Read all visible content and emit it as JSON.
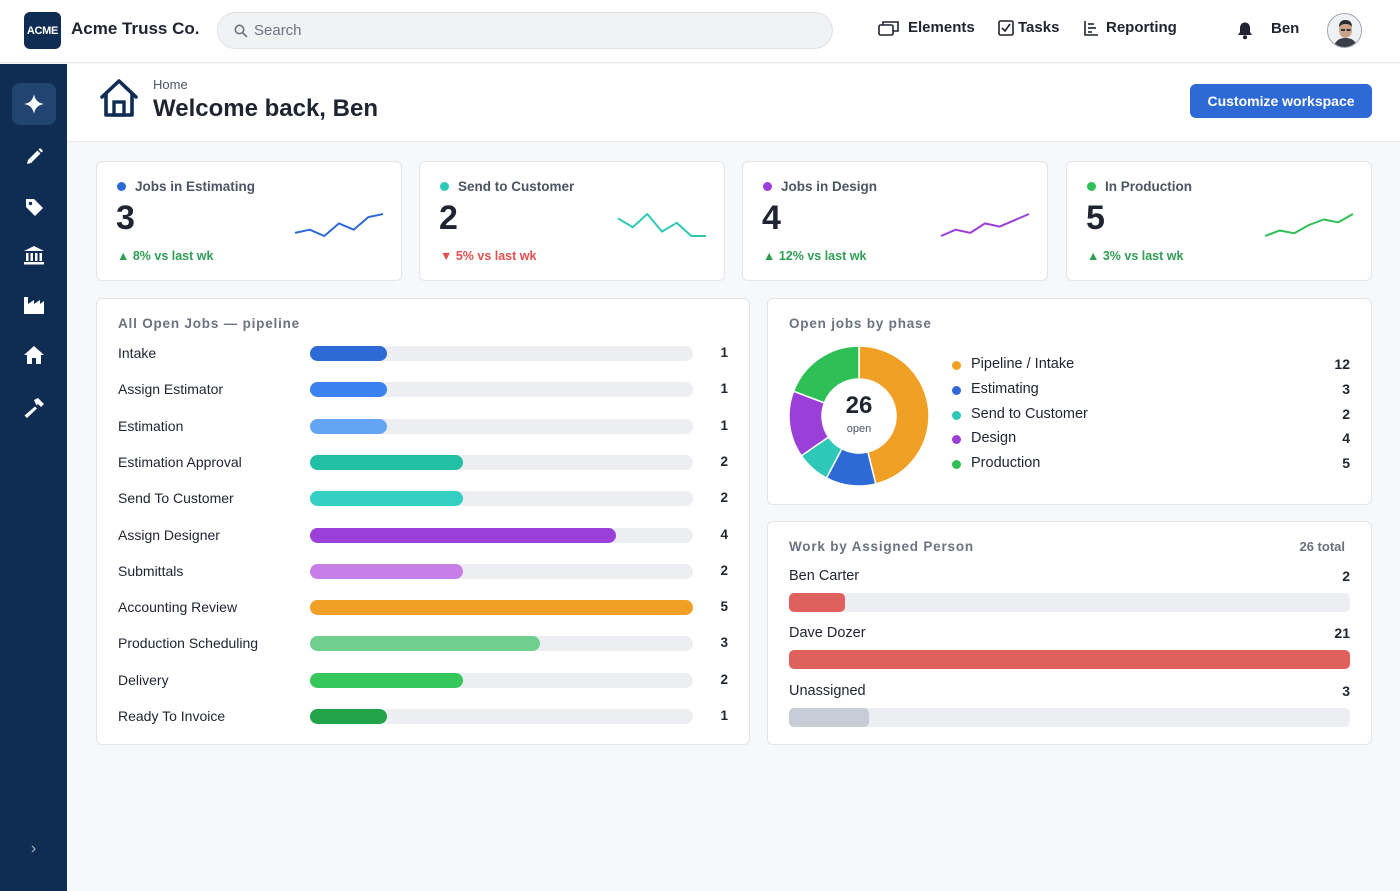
{
  "app": {
    "logo_text": "ACME",
    "company_name": "Acme Truss Co.",
    "search_placeholder": "Search",
    "nav": [
      {
        "label": "Elements",
        "icon": "elements-icon"
      },
      {
        "label": "Tasks",
        "icon": "tasks-icon"
      },
      {
        "label": "Reporting",
        "icon": "reporting-icon"
      }
    ],
    "user_name": "Ben"
  },
  "sidebar": {
    "items": [
      {
        "icon": "sparkle-icon",
        "active": true
      },
      {
        "icon": "pencil-icon",
        "active": false
      },
      {
        "icon": "tag-icon",
        "active": false
      },
      {
        "icon": "bank-icon",
        "active": false
      },
      {
        "icon": "factory-icon",
        "active": false
      },
      {
        "icon": "house-icon",
        "active": false
      },
      {
        "icon": "hammer-icon",
        "active": false
      }
    ],
    "toggle": "›"
  },
  "header": {
    "breadcrumb": "Home",
    "title": "Welcome back, Ben",
    "customize_label": "Customize workspace"
  },
  "kpis": [
    {
      "label": "Jobs in Estimating",
      "value": "3",
      "delta": "▲ 8% vs last wk",
      "trend": "up",
      "color": "#2d6ad6",
      "spark": [
        4,
        5,
        3,
        7,
        5,
        9,
        10
      ]
    },
    {
      "label": "Send to Customer",
      "value": "2",
      "delta": "▼ 5% vs last wk",
      "trend": "down",
      "color": "#2ec8b8",
      "spark": [
        8,
        6,
        9,
        5,
        7,
        4,
        4
      ]
    },
    {
      "label": "Jobs in Design",
      "value": "4",
      "delta": "▲ 12% vs last wk",
      "trend": "up",
      "color": "#9b3fd9",
      "spark": [
        3,
        5,
        4,
        7,
        6,
        8,
        10
      ]
    },
    {
      "label": "In Production",
      "value": "5",
      "delta": "▲ 3% vs last wk",
      "trend": "up",
      "color": "#2fbf57",
      "spark": [
        3,
        5,
        4,
        7,
        9,
        8,
        11
      ]
    }
  ],
  "pipeline": {
    "title": "All Open Jobs — pipeline",
    "max": 5,
    "stages": [
      {
        "label": "Intake",
        "value": 1,
        "color": "#2d6ad6"
      },
      {
        "label": "Assign Estimator",
        "value": 1,
        "color": "#3b82f0"
      },
      {
        "label": "Estimation",
        "value": 1,
        "color": "#63a4f5"
      },
      {
        "label": "Estimation Approval",
        "value": 2,
        "color": "#22bfa5"
      },
      {
        "label": "Send To Customer",
        "value": 2,
        "color": "#33cfc0"
      },
      {
        "label": "Assign Designer",
        "value": 4,
        "color": "#9b3fd9"
      },
      {
        "label": "Submittals",
        "value": 2,
        "color": "#c77fe8"
      },
      {
        "label": "Accounting Review",
        "value": 5,
        "color": "#f0a024"
      },
      {
        "label": "Production Scheduling",
        "value": 3,
        "color": "#6fd08e"
      },
      {
        "label": "Delivery",
        "value": 2,
        "color": "#34c759"
      },
      {
        "label": "Ready To Invoice",
        "value": 1,
        "color": "#22a34a"
      }
    ]
  },
  "phase": {
    "title": "Open jobs by phase",
    "center_value": "26",
    "center_label": "open",
    "segments": [
      {
        "label": "Pipeline / Intake",
        "value": 12,
        "color": "#f0a024"
      },
      {
        "label": "Estimating",
        "value": 3,
        "color": "#2d6ad6"
      },
      {
        "label": "Send to Customer",
        "value": 2,
        "color": "#2ec8b8"
      },
      {
        "label": "Design",
        "value": 4,
        "color": "#9b3fd9"
      },
      {
        "label": "Production",
        "value": 5,
        "color": "#2fbf57"
      }
    ]
  },
  "people": {
    "title": "Work by Assigned Person",
    "total": "26 total",
    "max": 21,
    "rows": [
      {
        "name": "Ben Carter",
        "value": 2,
        "color": "#e0605e"
      },
      {
        "name": "Dave Dozer",
        "value": 21,
        "color": "#e0605e"
      },
      {
        "name": "Unassigned",
        "value": 3,
        "color": "#c7ccd6"
      }
    ]
  }
}
